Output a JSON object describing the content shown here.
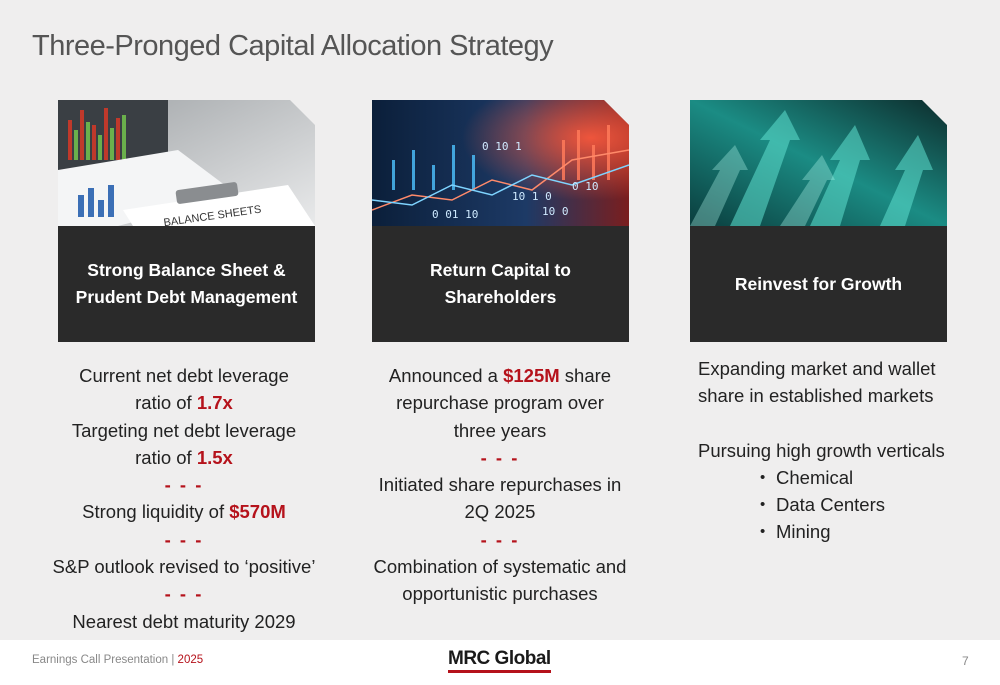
{
  "title": "Three-Pronged Capital Allocation Strategy",
  "cards": [
    {
      "heading_line1": "Strong Balance Sheet &",
      "heading_line2": "Prudent Debt Management",
      "image_text": "BALANCE SHEETS"
    },
    {
      "heading_line1": "Return Capital to",
      "heading_line2": "Shareholders"
    },
    {
      "heading_line1": "Reinvest for Growth"
    }
  ],
  "col1": {
    "l1": "Current net debt leverage",
    "l2_pre": "ratio of ",
    "l2_val": "1.7x",
    "l3": "Targeting net debt leverage",
    "l4_pre": "ratio of ",
    "l4_val": "1.5x",
    "dash": "- - -",
    "l5_pre": "Strong liquidity of ",
    "l5_val": "$570M",
    "l6": "S&P outlook revised to ‘positive’",
    "l7": "Nearest debt maturity 2029"
  },
  "col2": {
    "l1_pre": "Announced a ",
    "l1_val": "$125M",
    "l1_post": " share",
    "l2": "repurchase program over",
    "l3": "three years",
    "dash": "- - -",
    "l4": "Initiated share repurchases in",
    "l5": "2Q 2025",
    "l6": "Combination of systematic and",
    "l7": "opportunistic purchases"
  },
  "col3": {
    "l1": "Expanding market and wallet",
    "l2": "share in established markets",
    "l3": "Pursuing high growth verticals",
    "bullets": [
      "Chemical",
      "Data Centers",
      "Mining"
    ]
  },
  "footer": {
    "left": "Earnings Call Presentation | ",
    "year": "2025",
    "logo": "MRC Global",
    "page": "7"
  },
  "colors": {
    "accent": "#b5121b",
    "band": "#2a2a2a",
    "background": "#efeeee"
  }
}
